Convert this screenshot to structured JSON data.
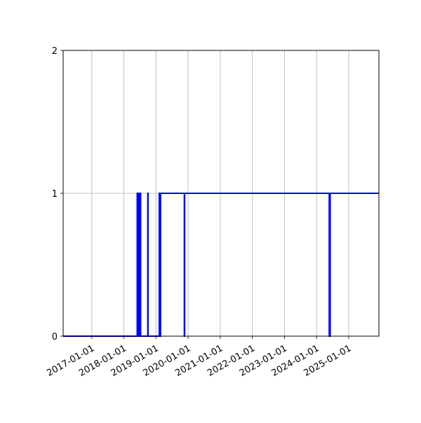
{
  "chart_data": {
    "type": "line",
    "step": "post",
    "title": "",
    "xlabel": "",
    "ylabel": "",
    "xlim": [
      "2016-02-10",
      "2025-12-10"
    ],
    "ylim": [
      0,
      2
    ],
    "grid": true,
    "x_ticks": [
      "2017-01-01",
      "2018-01-01",
      "2019-01-01",
      "2020-01-01",
      "2021-01-01",
      "2022-01-01",
      "2023-01-01",
      "2024-01-01",
      "2025-01-01"
    ],
    "y_ticks": [
      "0",
      "1",
      "2"
    ],
    "series": [
      {
        "color": "#0000ff",
        "points": [
          [
            "2016-02-10",
            0
          ],
          [
            "2018-06-01",
            1
          ],
          [
            "2018-06-04",
            0
          ],
          [
            "2018-06-07",
            1
          ],
          [
            "2018-06-11",
            0
          ],
          [
            "2018-06-14",
            1
          ],
          [
            "2018-06-18",
            0
          ],
          [
            "2018-06-21",
            1
          ],
          [
            "2018-06-25",
            0
          ],
          [
            "2018-06-28",
            1
          ],
          [
            "2018-07-03",
            0
          ],
          [
            "2018-07-06",
            1
          ],
          [
            "2018-07-10",
            0
          ],
          [
            "2018-09-30",
            1
          ],
          [
            "2018-10-03",
            0
          ],
          [
            "2019-02-07",
            1
          ],
          [
            "2019-02-11",
            0
          ],
          [
            "2019-02-14",
            1
          ],
          [
            "2019-02-18",
            0
          ],
          [
            "2019-02-22",
            1
          ],
          [
            "2019-11-19",
            0
          ],
          [
            "2019-11-23",
            1
          ],
          [
            "2024-05-24",
            0
          ],
          [
            "2024-05-28",
            1
          ],
          [
            "2024-06-01",
            0
          ],
          [
            "2024-06-04",
            1
          ],
          [
            "2025-12-10",
            1
          ]
        ]
      }
    ]
  }
}
